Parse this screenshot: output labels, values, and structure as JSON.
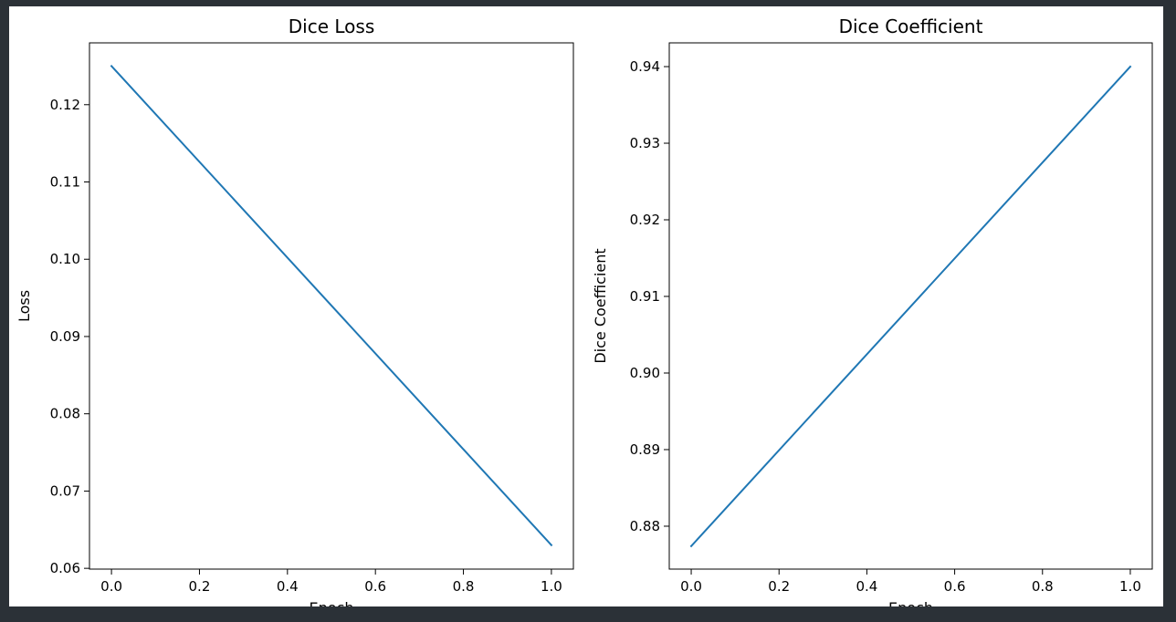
{
  "chart_data": [
    {
      "type": "line",
      "title": "Dice Loss",
      "xlabel": "Epoch",
      "ylabel": "Loss",
      "x": [
        0.0,
        1.0
      ],
      "series": [
        {
          "values": [
            0.125,
            0.063
          ],
          "color": "#1f77b4"
        }
      ],
      "xlim": [
        -0.05,
        1.05
      ],
      "ylim": [
        0.0599,
        0.128
      ],
      "xticks": [
        0.0,
        0.2,
        0.4,
        0.6,
        0.8,
        1.0
      ],
      "xtick_labels": [
        "0.0",
        "0.2",
        "0.4",
        "0.6",
        "0.8",
        "1.0"
      ],
      "yticks": [
        0.06,
        0.07,
        0.08,
        0.09,
        0.1,
        0.11,
        0.12
      ],
      "ytick_labels": [
        "0.06",
        "0.07",
        "0.08",
        "0.09",
        "0.10",
        "0.11",
        "0.12"
      ],
      "grid": false
    },
    {
      "type": "line",
      "title": "Dice Coefficient",
      "xlabel": "Epoch",
      "ylabel": "Dice Coefficient",
      "x": [
        0.0,
        1.0
      ],
      "series": [
        {
          "values": [
            0.8774,
            0.94
          ],
          "color": "#1f77b4"
        }
      ],
      "xlim": [
        -0.05,
        1.05
      ],
      "ylim": [
        0.8744,
        0.9431
      ],
      "xticks": [
        0.0,
        0.2,
        0.4,
        0.6,
        0.8,
        1.0
      ],
      "xtick_labels": [
        "0.0",
        "0.2",
        "0.4",
        "0.6",
        "0.8",
        "1.0"
      ],
      "yticks": [
        0.88,
        0.89,
        0.9,
        0.91,
        0.92,
        0.93,
        0.94
      ],
      "ytick_labels": [
        "0.88",
        "0.89",
        "0.90",
        "0.91",
        "0.92",
        "0.93",
        "0.94"
      ],
      "grid": false
    }
  ]
}
